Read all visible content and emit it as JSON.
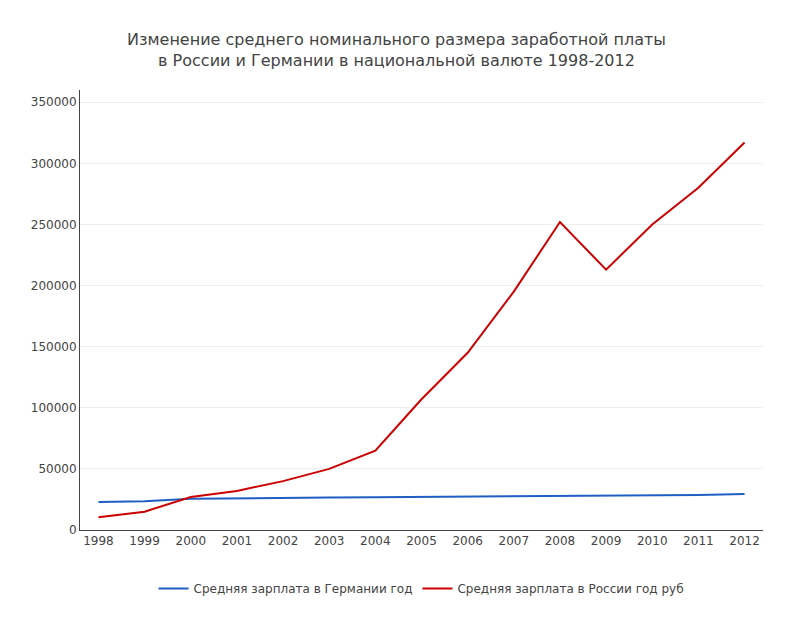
{
  "chart_data": {
    "type": "line",
    "title": "Изменение среднего номинального размера заработной платы\nв России и Германии в национальной валюте 1998-2012",
    "x": [
      1998,
      1999,
      2000,
      2001,
      2002,
      2003,
      2004,
      2005,
      2006,
      2007,
      2008,
      2009,
      2010,
      2011,
      2012
    ],
    "series": [
      {
        "name": "Средняя зарплата в Германии год",
        "color": "#1f5fc4",
        "values": [
          23000,
          23500,
          25500,
          26000,
          26200,
          26500,
          26700,
          27000,
          27200,
          27500,
          28000,
          27800,
          28200,
          28700,
          29500
        ]
      },
      {
        "name": "Средняя зарплата в России год руб",
        "color": "#cc0000",
        "values": [
          10500,
          15000,
          27000,
          32000,
          40000,
          50000,
          65000,
          107000,
          145000,
          195000,
          252000,
          213000,
          250000,
          280000,
          317000
        ]
      }
    ],
    "xlim": [
      1997.6,
      2012.4
    ],
    "xticks": [
      1998,
      1999,
      2000,
      2001,
      2002,
      2003,
      2004,
      2005,
      2006,
      2007,
      2008,
      2009,
      2010,
      2011,
      2012
    ],
    "ylim": [
      0,
      360000
    ],
    "yticks": [
      0,
      50000,
      100000,
      150000,
      200000,
      250000,
      300000,
      350000
    ],
    "grid": true,
    "legend": "bottom"
  }
}
